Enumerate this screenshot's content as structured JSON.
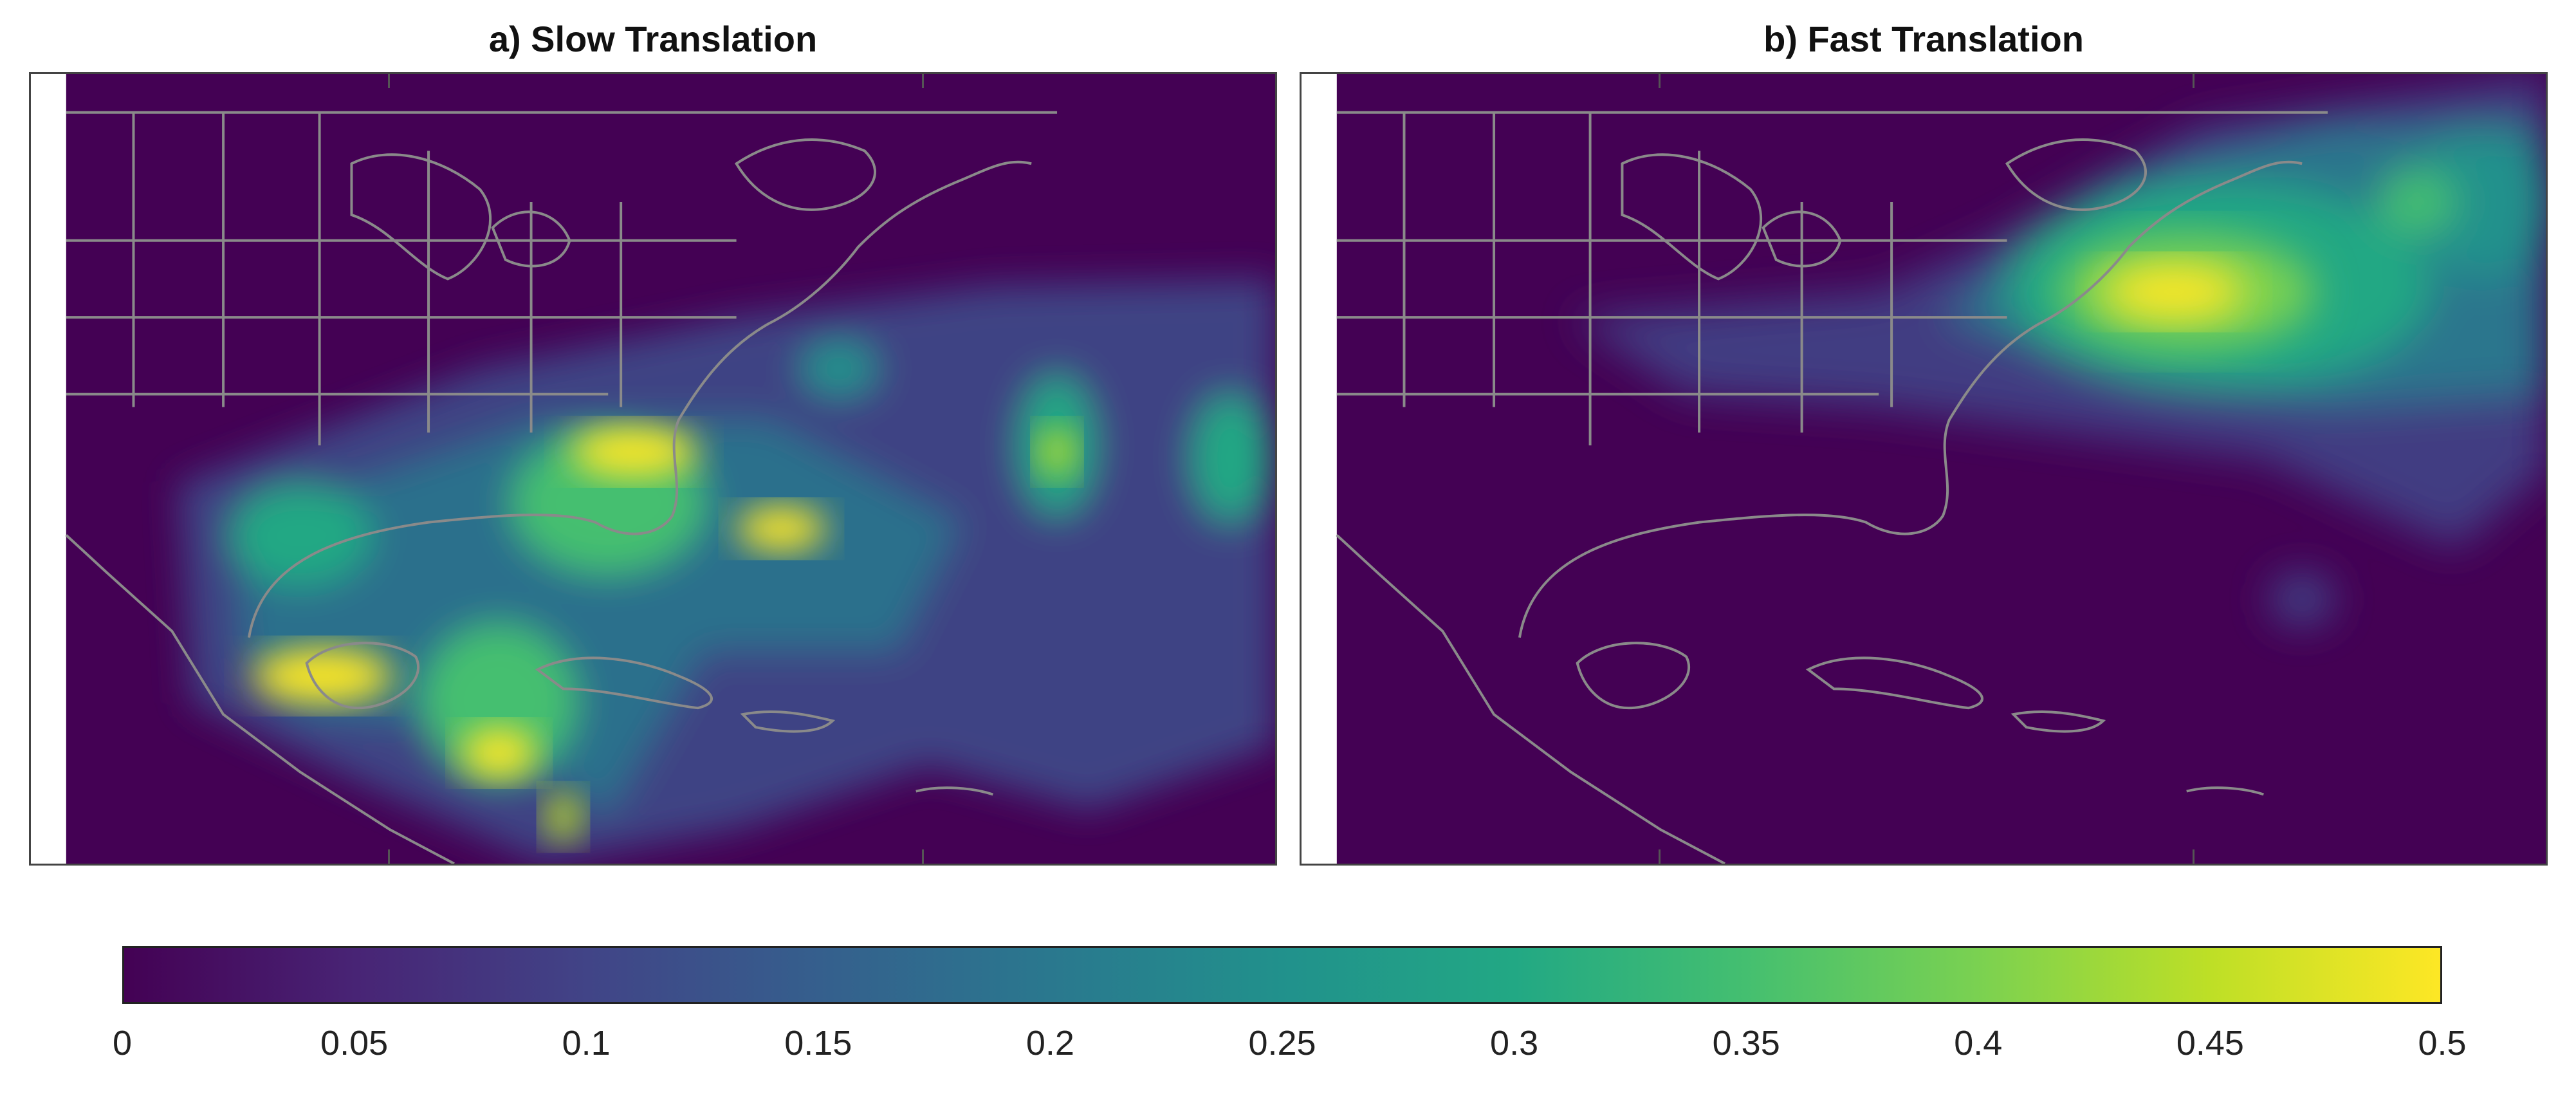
{
  "panels": [
    {
      "id": "a",
      "title": "a) Slow Translation"
    },
    {
      "id": "b",
      "title": "b) Fast Translation"
    }
  ],
  "colorbar": {
    "min": 0,
    "max": 0.5,
    "colormap": "viridis",
    "tick_labels": [
      "0",
      "0.05",
      "0.1",
      "0.15",
      "0.2",
      "0.25",
      "0.3",
      "0.35",
      "0.4",
      "0.45",
      "0.5"
    ],
    "colors": [
      "#440154",
      "#482475",
      "#414487",
      "#355f8d",
      "#2a788e",
      "#21918c",
      "#22a884",
      "#44bf70",
      "#7ad151",
      "#bddf26",
      "#fde725"
    ]
  },
  "map": {
    "land_outline_color": "#8a8a8a",
    "background_color": "#440154"
  }
}
